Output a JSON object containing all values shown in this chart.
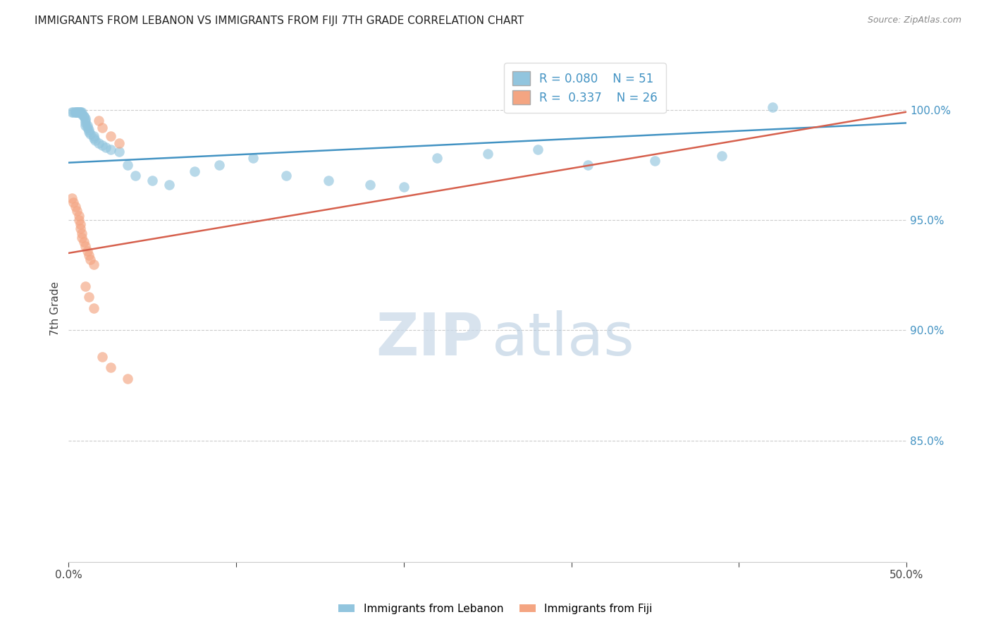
{
  "title": "IMMIGRANTS FROM LEBANON VS IMMIGRANTS FROM FIJI 7TH GRADE CORRELATION CHART",
  "source": "Source: ZipAtlas.com",
  "ylabel": "7th Grade",
  "color_blue": "#92c5de",
  "color_blue_line": "#4393c3",
  "color_pink": "#f4a582",
  "color_pink_line": "#d6604d",
  "legend_r_blue": "R = 0.080",
  "legend_n_blue": "N = 51",
  "legend_r_pink": "R =  0.337",
  "legend_n_pink": "N = 26",
  "xlim": [
    0.0,
    0.5
  ],
  "ylim": [
    0.795,
    1.025
  ],
  "blue_line_x": [
    0.0,
    0.5
  ],
  "blue_line_y": [
    0.976,
    0.994
  ],
  "pink_line_x": [
    0.0,
    0.5
  ],
  "pink_line_y": [
    0.935,
    0.999
  ],
  "blue_scatter_x": [
    0.002,
    0.003,
    0.004,
    0.004,
    0.005,
    0.005,
    0.005,
    0.006,
    0.006,
    0.006,
    0.007,
    0.007,
    0.008,
    0.008,
    0.009,
    0.009,
    0.01,
    0.01,
    0.01,
    0.01,
    0.011,
    0.011,
    0.012,
    0.012,
    0.013,
    0.015,
    0.015,
    0.016,
    0.018,
    0.02,
    0.022,
    0.025,
    0.03,
    0.035,
    0.04,
    0.05,
    0.06,
    0.075,
    0.09,
    0.11,
    0.13,
    0.155,
    0.18,
    0.2,
    0.22,
    0.25,
    0.28,
    0.31,
    0.35,
    0.39,
    0.42
  ],
  "blue_scatter_y": [
    0.999,
    0.999,
    0.999,
    0.999,
    0.999,
    0.999,
    0.999,
    0.999,
    0.999,
    0.999,
    0.999,
    0.999,
    0.999,
    0.998,
    0.997,
    0.997,
    0.996,
    0.995,
    0.994,
    0.993,
    0.993,
    0.992,
    0.991,
    0.99,
    0.989,
    0.988,
    0.987,
    0.986,
    0.985,
    0.984,
    0.983,
    0.982,
    0.981,
    0.975,
    0.97,
    0.968,
    0.966,
    0.972,
    0.975,
    0.978,
    0.97,
    0.968,
    0.966,
    0.965,
    0.978,
    0.98,
    0.982,
    0.975,
    0.977,
    0.979,
    1.001
  ],
  "pink_scatter_x": [
    0.002,
    0.003,
    0.004,
    0.005,
    0.006,
    0.006,
    0.007,
    0.007,
    0.008,
    0.008,
    0.009,
    0.01,
    0.011,
    0.012,
    0.013,
    0.015,
    0.018,
    0.02,
    0.025,
    0.03,
    0.01,
    0.012,
    0.015,
    0.02,
    0.025,
    0.035
  ],
  "pink_scatter_y": [
    0.96,
    0.958,
    0.956,
    0.954,
    0.952,
    0.95,
    0.948,
    0.946,
    0.944,
    0.942,
    0.94,
    0.938,
    0.936,
    0.934,
    0.932,
    0.93,
    0.995,
    0.992,
    0.988,
    0.985,
    0.92,
    0.915,
    0.91,
    0.888,
    0.883,
    0.878
  ],
  "ytick_vals": [
    1.0,
    0.95,
    0.9,
    0.85
  ],
  "ytick_labels": [
    "100.0%",
    "95.0%",
    "90.0%",
    "85.0%"
  ],
  "xtick_vals": [
    0.0,
    0.1,
    0.2,
    0.3,
    0.4,
    0.5
  ],
  "xtick_labels": [
    "0.0%",
    "",
    "",
    "",
    "",
    "50.0%"
  ],
  "grid_color": "#cccccc",
  "watermark_zip_color": "#c8d8e8",
  "watermark_atlas_color": "#b0c8de"
}
